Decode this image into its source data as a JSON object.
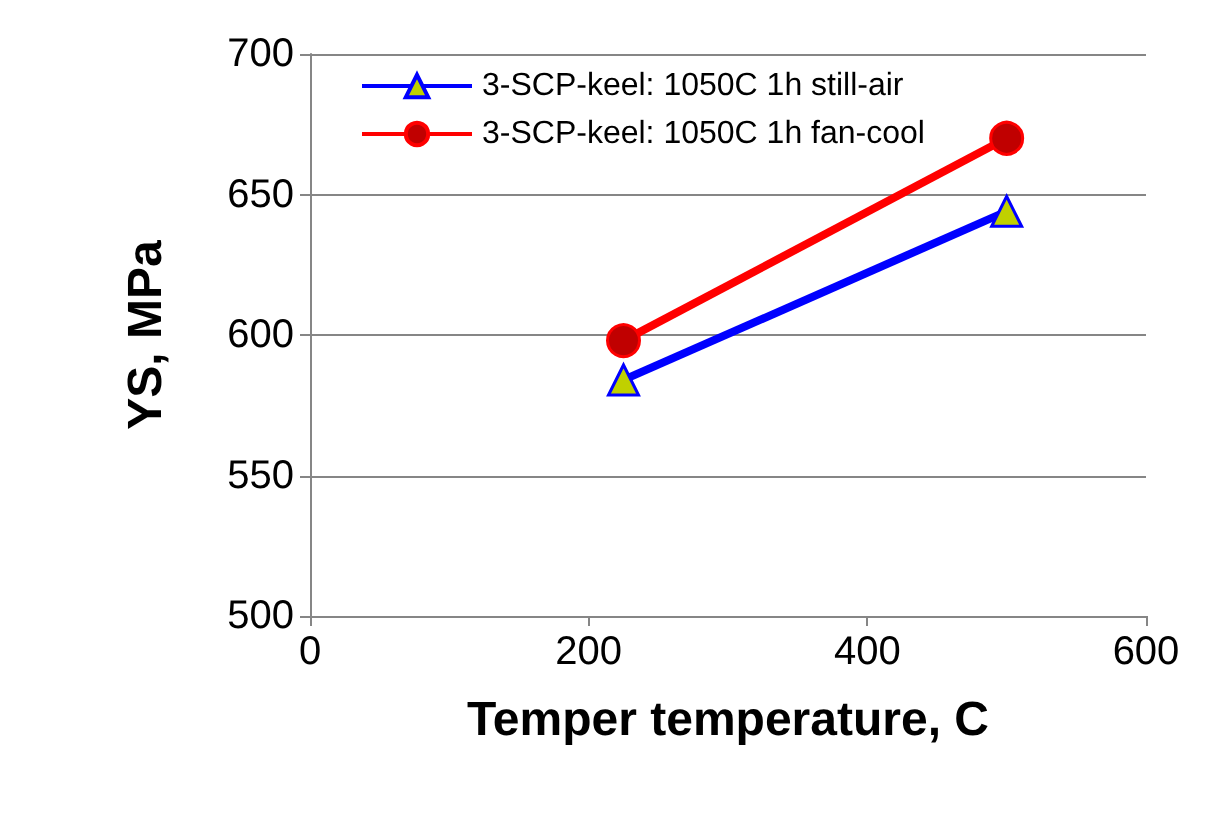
{
  "chart_data": {
    "type": "line",
    "xlabel": "Temper temperature, C",
    "ylabel": "YS, MPa",
    "xlim": [
      0,
      600
    ],
    "xticks": [
      0,
      200,
      400,
      600
    ],
    "ylim": [
      500,
      700
    ],
    "yticks": [
      500,
      550,
      600,
      650,
      700
    ],
    "grid": "y",
    "legend": "top",
    "x": [
      225,
      500
    ],
    "series": [
      {
        "name": "3-SCP-keel: 1050C 1h still-air",
        "color": "#0000ff",
        "marker": "triangle",
        "values": [
          584,
          644
        ]
      },
      {
        "name": "3-SCP-keel: 1050C 1h fan-cool",
        "color": "#ff0000",
        "marker": "circle",
        "values": [
          598,
          670
        ]
      }
    ]
  }
}
